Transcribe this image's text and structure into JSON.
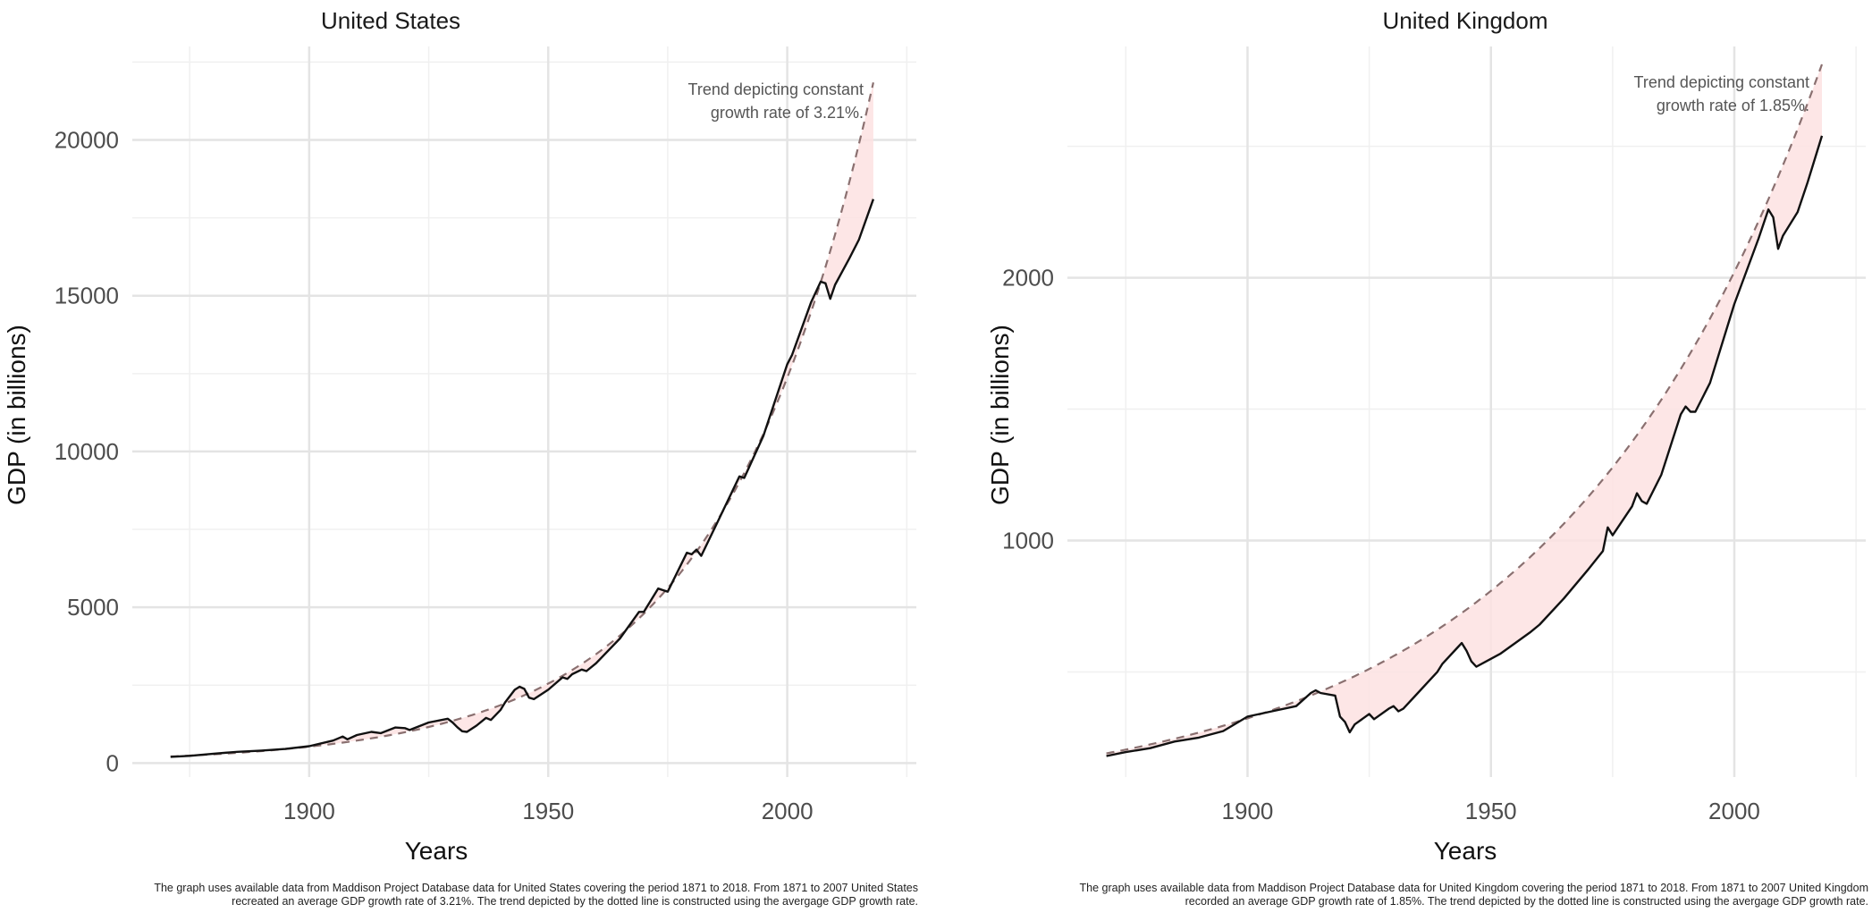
{
  "chart_data": [
    {
      "id": "us",
      "type": "line",
      "title": "United States",
      "xlabel": "Years",
      "ylabel": "GDP (in billions)",
      "xlim": [
        1863,
        2027
      ],
      "ylim": [
        -450,
        23000
      ],
      "x_ticks": [
        1900,
        1950,
        2000
      ],
      "x_minor_ticks": [
        1875,
        1925,
        1975,
        2025
      ],
      "y_ticks": [
        0,
        5000,
        10000,
        15000,
        20000
      ],
      "y_minor_ticks": [
        2500,
        7500,
        12500,
        17500,
        22500
      ],
      "annotation": [
        "Trend depicting constant",
        "growth rate of 3.21%."
      ],
      "caption": [
        "The graph uses available data from Maddison Project Database data for United States covering the period 1871 to 2018. From 1871 to 2007 United States",
        "recreated an average GDP growth rate of 3.21%. The trend depicted by the dotted line is constructed using the avergage GDP growth rate."
      ],
      "trend": {
        "start_year": 1871,
        "end_year": 2018,
        "base_value": 210,
        "growth_rate": 0.0321
      },
      "series": [
        {
          "name": "GDP",
          "x": [
            1871,
            1875,
            1880,
            1885,
            1890,
            1895,
            1900,
            1905,
            1907,
            1908,
            1910,
            1913,
            1915,
            1918,
            1920,
            1921,
            1925,
            1929,
            1930,
            1931,
            1932,
            1933,
            1935,
            1937,
            1938,
            1940,
            1941,
            1943,
            1944,
            1945,
            1946,
            1947,
            1950,
            1953,
            1954,
            1955,
            1957,
            1958,
            1960,
            1965,
            1969,
            1970,
            1973,
            1974,
            1975,
            1979,
            1980,
            1981,
            1982,
            1985,
            1990,
            1991,
            1995,
            2000,
            2001,
            2005,
            2007,
            2008,
            2009,
            2010,
            2013,
            2015,
            2018
          ],
          "values": [
            200,
            230,
            300,
            360,
            400,
            450,
            540,
            720,
            850,
            760,
            900,
            1000,
            960,
            1140,
            1120,
            1060,
            1300,
            1420,
            1300,
            1150,
            1020,
            1000,
            1200,
            1450,
            1380,
            1700,
            1950,
            2350,
            2450,
            2380,
            2100,
            2050,
            2350,
            2750,
            2700,
            2850,
            3000,
            2950,
            3200,
            4000,
            4850,
            4850,
            5600,
            5550,
            5500,
            6750,
            6700,
            6850,
            6650,
            7600,
            9200,
            9150,
            10500,
            12800,
            13100,
            14800,
            15450,
            15400,
            14900,
            15350,
            16200,
            16800,
            18100
          ]
        }
      ]
    },
    {
      "id": "uk",
      "type": "line",
      "title": "United Kingdom",
      "xlabel": "Years",
      "ylabel": "GDP (in billions)",
      "xlim": [
        1863,
        2027
      ],
      "ylim": [
        100,
        2880
      ],
      "x_ticks": [
        1900,
        1950,
        2000
      ],
      "x_minor_ticks": [
        1875,
        1925,
        1975,
        2025
      ],
      "y_ticks": [
        1000,
        2000
      ],
      "y_minor_ticks": [
        500,
        1500,
        2500
      ],
      "annotation": [
        "Trend depicting constant",
        "growth rate of 1.85%."
      ],
      "caption": [
        "The graph uses available data from Maddison Project Database data for United Kingdom covering the period 1871 to 2018. From 1871 to 2007 United Kingdom",
        "recorded an average GDP growth rate of 1.85%. The trend depicted by the dotted line is constructed using the avergage GDP growth rate."
      ],
      "trend": {
        "start_year": 1871,
        "end_year": 2018,
        "base_value": 190,
        "growth_rate": 0.0185
      },
      "series": [
        {
          "name": "GDP",
          "x": [
            1871,
            1875,
            1880,
            1885,
            1890,
            1895,
            1900,
            1905,
            1910,
            1913,
            1914,
            1915,
            1918,
            1919,
            1920,
            1921,
            1922,
            1925,
            1926,
            1929,
            1930,
            1931,
            1932,
            1935,
            1937,
            1939,
            1940,
            1943,
            1944,
            1945,
            1946,
            1947,
            1950,
            1952,
            1955,
            1958,
            1960,
            1965,
            1970,
            1973,
            1974,
            1975,
            1979,
            1980,
            1981,
            1982,
            1985,
            1989,
            1990,
            1991,
            1992,
            1995,
            2000,
            2005,
            2007,
            2008,
            2009,
            2010,
            2013,
            2015,
            2018
          ],
          "values": [
            180,
            195,
            210,
            235,
            250,
            275,
            330,
            350,
            370,
            420,
            430,
            420,
            410,
            330,
            310,
            270,
            300,
            340,
            320,
            360,
            370,
            350,
            360,
            420,
            460,
            500,
            530,
            590,
            610,
            580,
            540,
            520,
            550,
            570,
            610,
            650,
            680,
            780,
            890,
            960,
            1050,
            1020,
            1130,
            1180,
            1150,
            1140,
            1250,
            1480,
            1510,
            1490,
            1490,
            1600,
            1900,
            2150,
            2260,
            2230,
            2110,
            2160,
            2250,
            2360,
            2540
          ]
        }
      ]
    }
  ]
}
